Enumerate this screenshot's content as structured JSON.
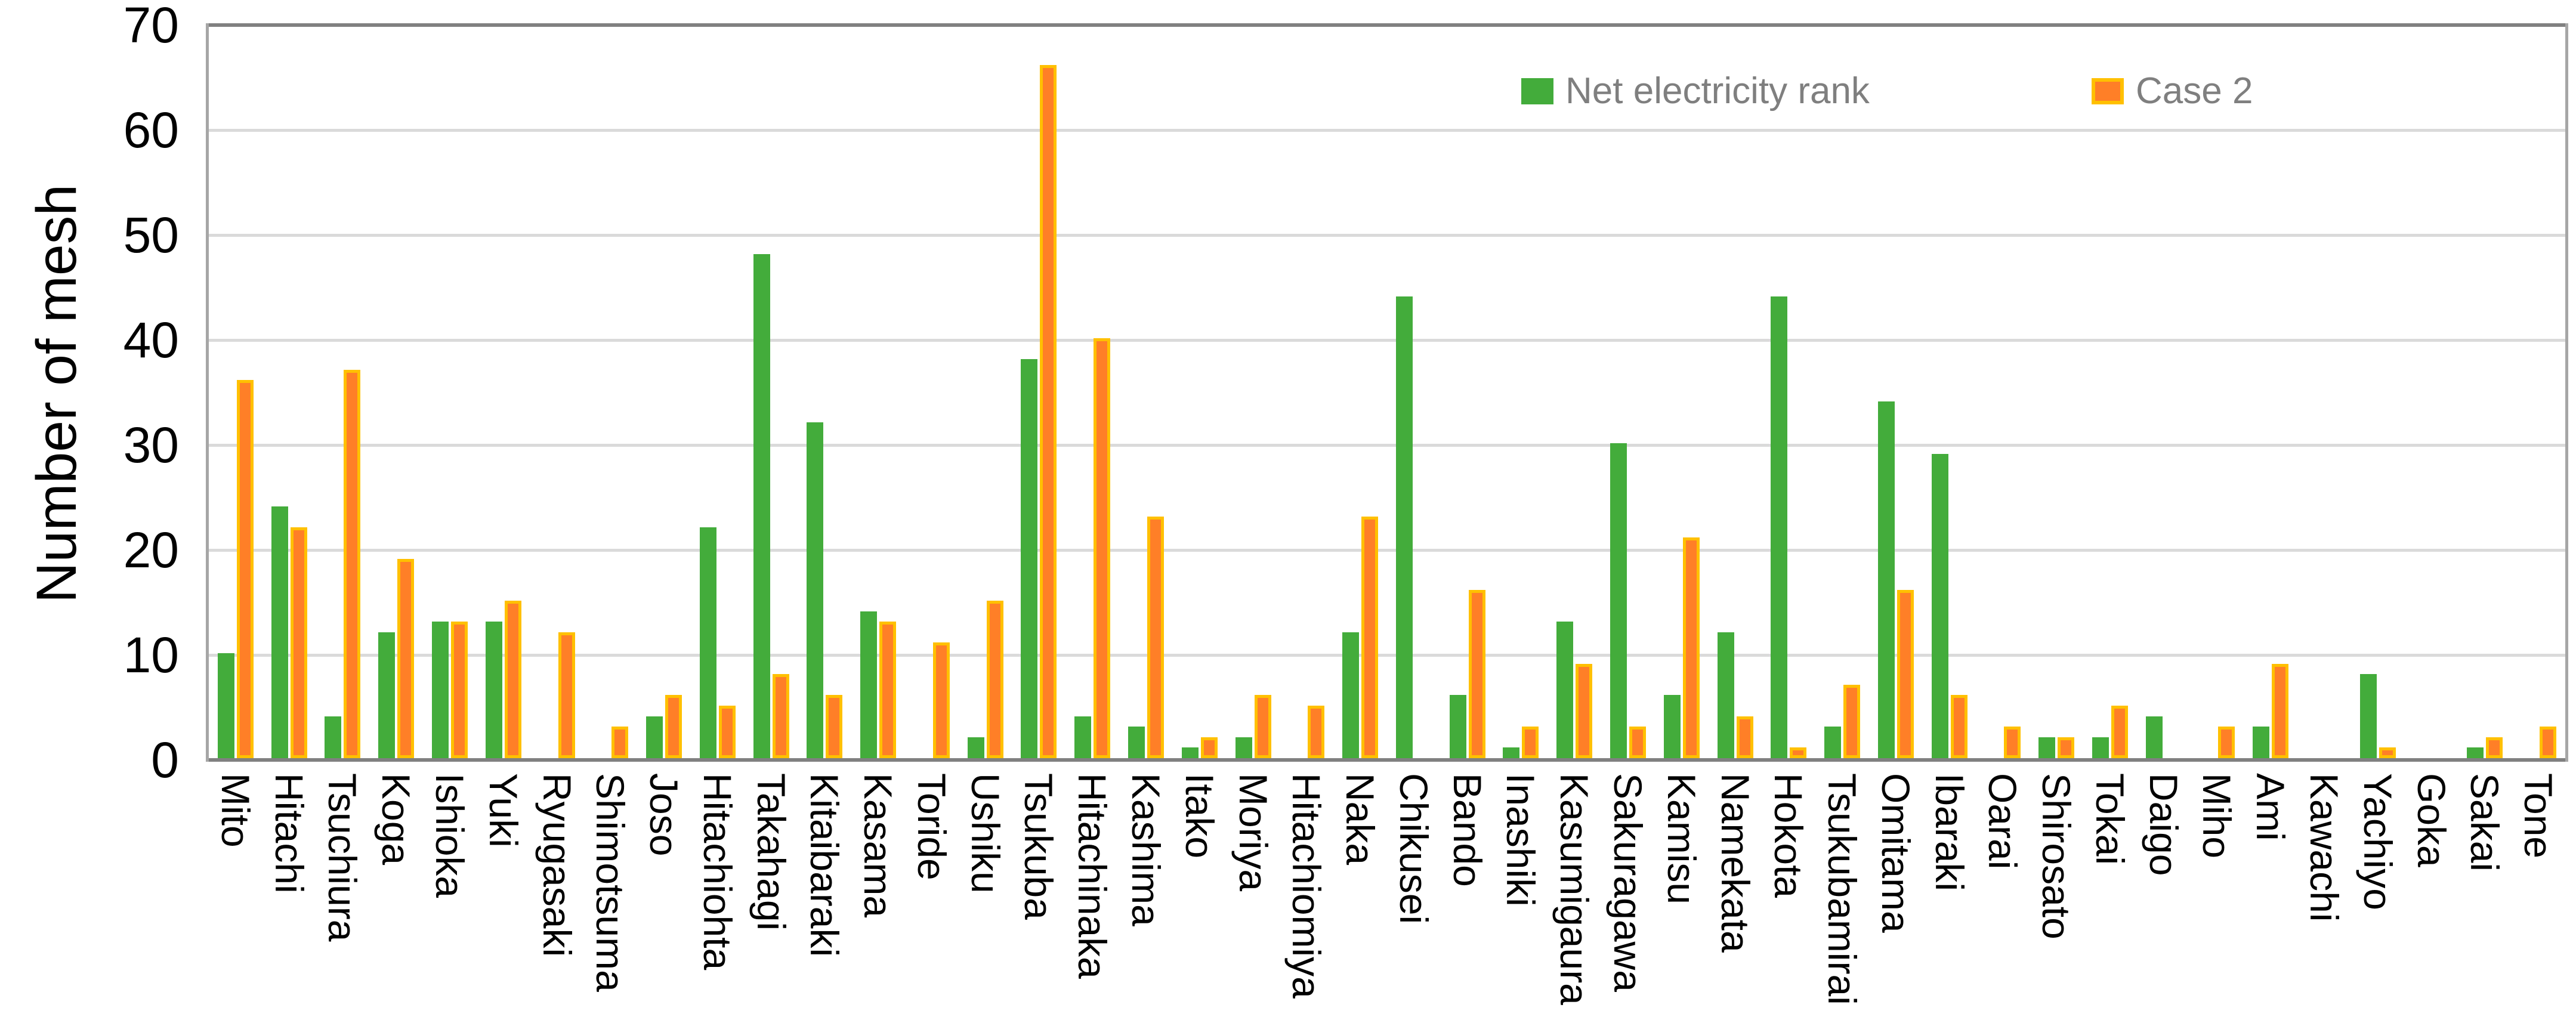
{
  "chart_data": {
    "type": "bar",
    "title": "",
    "xlabel": "",
    "ylabel": "Number of mesh",
    "ylim": [
      0,
      70
    ],
    "ytick_step": 10,
    "grid": true,
    "legend_position": "top-right-inside",
    "background_color": "#FFFFFF",
    "gridline_color": "#DADADA",
    "axis_line_color": "#808080",
    "side_border_color": "#A6A6A6",
    "tick_label_color": "#000000",
    "legend_text_color": "#7F7F7F",
    "categories": [
      "Mito",
      "Hitachi",
      "Tsuchiura",
      "Koga",
      "Ishioka",
      "Yuki",
      "Ryugasaki",
      "Shimotsuma",
      "Joso",
      "Hitachiohta",
      "Takahagi",
      "Kitaibaraki",
      "Kasama",
      "Toride",
      "Ushiku",
      "Tsukuba",
      "Hitachinaka",
      "Kashima",
      "Itako",
      "Moriya",
      "Hitachiomiya",
      "Naka",
      "Chikusei",
      "Bando",
      "Inashiki",
      "Kasumigaura",
      "Sakuragawa",
      "Kamisu",
      "Namekata",
      "Hokota",
      "Tsukubamirai",
      "Omitama",
      "Ibaraki",
      "Oarai",
      "Shirosato",
      "Tokai",
      "Daigo",
      "Miho",
      "Ami",
      "Kawachi",
      "Yachiyo",
      "Goka",
      "Sakai",
      "Tone"
    ],
    "series": [
      {
        "name": "Net electricity rank",
        "color": "#43AC3B",
        "border_color": null,
        "values": [
          10,
          24,
          4,
          12,
          13,
          13,
          0,
          0,
          4,
          22,
          48,
          32,
          14,
          0,
          2,
          38,
          4,
          3,
          1,
          2,
          0,
          12,
          44,
          6,
          1,
          13,
          30,
          6,
          12,
          44,
          3,
          34,
          29,
          0,
          2,
          2,
          4,
          0,
          3,
          0,
          8,
          0,
          1,
          0
        ]
      },
      {
        "name": "Case 2",
        "color": "#FF7F27",
        "border_color": "#FFC000",
        "values": [
          36,
          22,
          37,
          19,
          13,
          15,
          12,
          3,
          6,
          5,
          8,
          6,
          13,
          11,
          15,
          66,
          40,
          23,
          2,
          6,
          5,
          23,
          0,
          16,
          3,
          9,
          3,
          21,
          4,
          1,
          7,
          16,
          6,
          3,
          2,
          5,
          0,
          3,
          9,
          0,
          1,
          0,
          2,
          3
        ]
      }
    ],
    "yticks": [
      0,
      10,
      20,
      30,
      40,
      50,
      60,
      70
    ]
  },
  "legend": {
    "series1_label": "Net electricity rank",
    "series2_label": "Case 2"
  },
  "axes": {
    "y_title": "Number of mesh"
  }
}
